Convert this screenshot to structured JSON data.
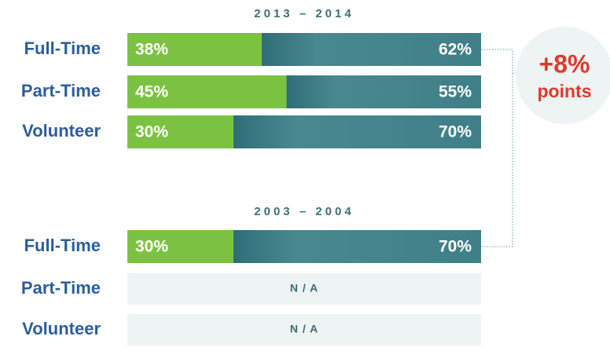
{
  "chart_data": [
    {
      "type": "bar",
      "orientation": "horizontal",
      "stacked": true,
      "title": "2013 – 2014",
      "categories": [
        "Full-Time",
        "Part-Time",
        "Volunteer"
      ],
      "xlim": [
        0,
        100
      ],
      "series": [
        {
          "color": "#7cc242",
          "values": [
            38,
            45,
            30
          ],
          "value_labels": [
            "38%",
            "45%",
            "30%"
          ]
        },
        {
          "color": "#3f7d85",
          "values": [
            62,
            55,
            70
          ],
          "value_labels": [
            "62%",
            "55%",
            "70%"
          ]
        }
      ],
      "annotations": [
        "+8%",
        "points"
      ]
    },
    {
      "type": "bar",
      "orientation": "horizontal",
      "stacked": true,
      "title": "2003 – 2004",
      "categories": [
        "Full-Time",
        "Part-Time",
        "Volunteer"
      ],
      "xlim": [
        0,
        100
      ],
      "na_label": "N / A",
      "series": [
        {
          "color": "#7cc242",
          "values": [
            30,
            null,
            null
          ],
          "value_labels": [
            "30%",
            null,
            null
          ]
        },
        {
          "color": "#3f7d85",
          "values": [
            70,
            null,
            null
          ],
          "value_labels": [
            "70%",
            null,
            null
          ]
        }
      ]
    }
  ]
}
